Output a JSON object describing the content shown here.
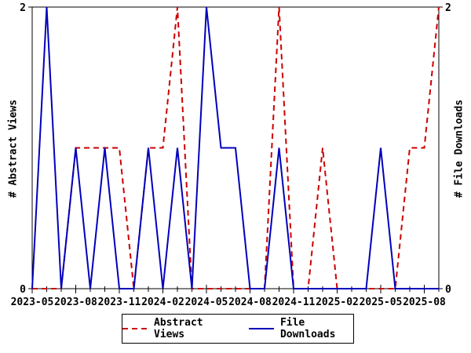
{
  "axes": {
    "left_label": "# Abstract Views",
    "right_label": "# File Downloads"
  },
  "legend": {
    "abstract_views": "Abstract Views",
    "file_downloads": "File Downloads"
  },
  "colors": {
    "abstract_views": "#cc0000",
    "file_downloads": "#0000bb",
    "axis": "#000000",
    "background": "#ffffff"
  },
  "chart_data": {
    "type": "line",
    "x": [
      "2023-05",
      "2023-06",
      "2023-07",
      "2023-08",
      "2023-09",
      "2023-10",
      "2023-11",
      "2023-12",
      "2024-01",
      "2024-02",
      "2024-03",
      "2024-04",
      "2024-05",
      "2024-06",
      "2024-07",
      "2024-08",
      "2024-09",
      "2024-10",
      "2024-11",
      "2024-12",
      "2025-01",
      "2025-02",
      "2025-03",
      "2025-04",
      "2025-05",
      "2025-06",
      "2025-07",
      "2025-08",
      "2025-09"
    ],
    "x_tick_labels": [
      "2023-05",
      "2023-08",
      "2023-11",
      "2024-02",
      "2024-05",
      "2024-08",
      "2024-11",
      "2025-02",
      "2025-05",
      "2025-08"
    ],
    "x_label_every": 3,
    "series": [
      {
        "name": "Abstract Views",
        "axis": "left",
        "color": "#cc0000",
        "style": "dashed",
        "values": [
          0,
          0,
          0,
          1,
          1,
          1,
          1,
          0,
          1,
          1,
          2,
          0,
          0,
          0,
          0,
          0,
          0,
          2,
          0,
          0,
          1,
          0,
          0,
          0,
          0,
          0,
          1,
          1,
          2
        ]
      },
      {
        "name": "File Downloads",
        "axis": "right",
        "color": "#0000bb",
        "style": "solid",
        "values": [
          0,
          2,
          0,
          1,
          0,
          1,
          0,
          0,
          1,
          0,
          1,
          0,
          2,
          1,
          1,
          0,
          0,
          1,
          0,
          0,
          0,
          0,
          0,
          0,
          1,
          0,
          0,
          0,
          0
        ]
      }
    ],
    "ylim": [
      0,
      2
    ],
    "yticks": [
      0,
      2
    ],
    "ytick_labels": [
      "0",
      "2"
    ],
    "ylabel_left": "# Abstract Views",
    "ylabel_right": "# File Downloads",
    "grid": false,
    "legend_position": "bottom-center",
    "title": ""
  }
}
